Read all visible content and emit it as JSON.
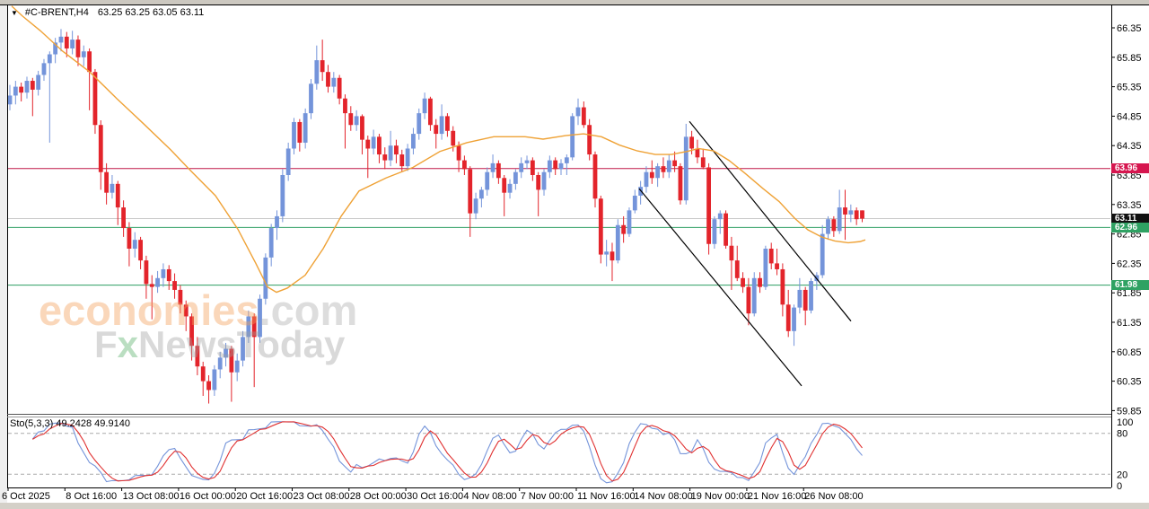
{
  "header": {
    "dropdown_glyph": "▼",
    "symbol": "#C-BRENT,H4",
    "ohlc": "63.25 63.25 63.05 63.11"
  },
  "watermark": {
    "brand": "economies",
    "brand_suffix": ".com",
    "sub_f": "F",
    "sub_x": "x",
    "sub_rest": "NewsToday"
  },
  "indicator": {
    "label": "Sto(5,3,3) 49.2428 49.9140",
    "name": "Stochastic",
    "k_period": 5,
    "d_period": 3,
    "slowing": 3,
    "current_k": "49.2428",
    "current_d": "49.9140",
    "levels": [
      "100",
      "80",
      "20",
      "0"
    ],
    "k_color": "#7494da",
    "d_color": "#e03030"
  },
  "price_axis": {
    "ticks": [
      "66.35",
      "65.85",
      "65.35",
      "64.85",
      "64.35",
      "63.85",
      "63.35",
      "62.85",
      "62.35",
      "61.85",
      "61.35",
      "60.85",
      "60.35",
      "59.85"
    ]
  },
  "colors": {
    "up_candle": "#7494da",
    "down_candle": "#e3242b",
    "ma_line": "#efa236",
    "resistance_line": "#c01849",
    "resistance_badge": "#d6164f",
    "support_line": "#2e9e62",
    "support_badge": "#2fa263",
    "current_price_line": "#c8c8c8",
    "current_price_badge": "#111111",
    "trendline": "#000000",
    "frame": "#000000",
    "level_dash": "#aaaaaa"
  },
  "chart_data": {
    "type": "candlestick",
    "symbol": "#C-BRENT",
    "timeframe": "H4",
    "title": "#C-BRENT,H4 63.25 63.25 63.05 63.11",
    "ylim": [
      59.85,
      66.35
    ],
    "price_ticks": [
      66.35,
      65.85,
      65.35,
      64.85,
      64.35,
      63.85,
      63.35,
      62.85,
      62.35,
      61.85,
      61.35,
      60.85,
      60.35,
      59.85
    ],
    "x_labels": [
      "6 Oct 2025",
      "8 Oct 16:00",
      "13 Oct 08:00",
      "16 Oct 00:00",
      "20 Oct 16:00",
      "23 Oct 08:00",
      "28 Oct 00:00",
      "30 Oct 16:00",
      "4 Nov 08:00",
      "7 Nov 00:00",
      "11 Nov 16:00",
      "14 Nov 08:00",
      "19 Nov 00:00",
      "21 Nov 16:00",
      "26 Nov 08:00"
    ],
    "candles_per_x_label": 10,
    "candles": [
      [
        65.05,
        65.38,
        64.95,
        65.2
      ],
      [
        65.2,
        65.45,
        65.05,
        65.35
      ],
      [
        65.35,
        65.42,
        65.1,
        65.25
      ],
      [
        65.25,
        65.52,
        65.15,
        65.45
      ],
      [
        65.45,
        65.5,
        64.85,
        65.3
      ],
      [
        65.3,
        65.62,
        65.2,
        65.55
      ],
      [
        65.55,
        65.82,
        65.45,
        65.75
      ],
      [
        65.75,
        65.95,
        64.4,
        65.9
      ],
      [
        65.9,
        66.18,
        65.75,
        66.1
      ],
      [
        66.1,
        66.33,
        65.95,
        66.2
      ],
      [
        66.2,
        66.28,
        65.85,
        66.0
      ],
      [
        66.0,
        66.3,
        65.9,
        66.15
      ],
      [
        66.15,
        66.22,
        65.7,
        65.85
      ],
      [
        65.85,
        66.05,
        65.7,
        65.95
      ],
      [
        65.95,
        66.0,
        64.95,
        65.6
      ],
      [
        65.6,
        65.65,
        64.55,
        64.7
      ],
      [
        64.7,
        64.78,
        63.6,
        63.9
      ],
      [
        63.9,
        64.05,
        63.35,
        63.55
      ],
      [
        63.55,
        63.85,
        63.45,
        63.7
      ],
      [
        63.7,
        63.75,
        63.0,
        63.3
      ],
      [
        63.3,
        63.42,
        62.8,
        62.95
      ],
      [
        62.95,
        63.05,
        62.3,
        62.6
      ],
      [
        62.6,
        62.88,
        62.45,
        62.75
      ],
      [
        62.75,
        62.8,
        62.25,
        62.4
      ],
      [
        62.4,
        62.48,
        61.75,
        62.0
      ],
      [
        62.0,
        62.15,
        61.4,
        61.95
      ],
      [
        61.95,
        62.22,
        61.85,
        62.1
      ],
      [
        62.1,
        62.35,
        61.95,
        62.25
      ],
      [
        62.25,
        62.32,
        61.9,
        62.05
      ],
      [
        62.05,
        62.18,
        61.75,
        61.9
      ],
      [
        61.9,
        61.98,
        61.5,
        61.65
      ],
      [
        61.65,
        61.72,
        61.2,
        61.45
      ],
      [
        61.45,
        61.5,
        60.7,
        60.95
      ],
      [
        60.95,
        61.1,
        60.45,
        60.6
      ],
      [
        60.6,
        60.68,
        60.1,
        60.35
      ],
      [
        60.35,
        60.45,
        59.97,
        60.2
      ],
      [
        60.2,
        60.62,
        60.1,
        60.55
      ],
      [
        60.55,
        60.85,
        60.4,
        60.75
      ],
      [
        60.75,
        61.0,
        60.6,
        60.9
      ],
      [
        60.9,
        60.95,
        60.0,
        60.5
      ],
      [
        60.5,
        60.82,
        60.35,
        60.7
      ],
      [
        60.7,
        61.2,
        60.6,
        61.1
      ],
      [
        61.1,
        61.55,
        61.0,
        61.45
      ],
      [
        61.45,
        61.5,
        60.25,
        61.1
      ],
      [
        61.1,
        61.82,
        61.0,
        61.75
      ],
      [
        61.75,
        62.52,
        61.65,
        62.45
      ],
      [
        62.45,
        63.02,
        62.3,
        62.95
      ],
      [
        62.95,
        63.25,
        62.75,
        63.15
      ],
      [
        63.15,
        63.95,
        63.05,
        63.85
      ],
      [
        63.85,
        64.4,
        63.75,
        64.3
      ],
      [
        64.3,
        64.82,
        64.2,
        64.75
      ],
      [
        64.75,
        64.8,
        64.25,
        64.4
      ],
      [
        64.4,
        64.98,
        64.3,
        64.9
      ],
      [
        64.9,
        65.48,
        64.8,
        65.4
      ],
      [
        65.4,
        66.05,
        65.3,
        65.8
      ],
      [
        65.8,
        66.15,
        65.45,
        65.6
      ],
      [
        65.6,
        65.72,
        65.25,
        65.35
      ],
      [
        65.35,
        65.6,
        65.25,
        65.5
      ],
      [
        65.5,
        65.55,
        65.05,
        65.15
      ],
      [
        65.15,
        65.22,
        64.3,
        64.9
      ],
      [
        64.9,
        65.02,
        64.6,
        64.7
      ],
      [
        64.7,
        64.95,
        64.6,
        64.85
      ],
      [
        64.85,
        64.88,
        64.2,
        64.45
      ],
      [
        64.45,
        64.52,
        63.8,
        64.3
      ],
      [
        64.3,
        64.62,
        64.2,
        64.5
      ],
      [
        64.5,
        64.55,
        64.05,
        64.2
      ],
      [
        64.2,
        64.32,
        63.95,
        64.1
      ],
      [
        64.1,
        64.6,
        64.0,
        64.35
      ],
      [
        64.35,
        64.45,
        64.05,
        64.2
      ],
      [
        64.2,
        64.28,
        63.9,
        64.0
      ],
      [
        64.0,
        64.38,
        63.92,
        64.3
      ],
      [
        64.3,
        64.65,
        64.2,
        64.55
      ],
      [
        64.55,
        64.98,
        64.45,
        64.9
      ],
      [
        64.9,
        65.25,
        64.8,
        65.15
      ],
      [
        65.15,
        65.18,
        64.6,
        64.7
      ],
      [
        64.7,
        64.8,
        64.3,
        64.55
      ],
      [
        64.55,
        65.05,
        64.45,
        64.85
      ],
      [
        64.85,
        64.9,
        64.5,
        64.6
      ],
      [
        64.6,
        64.68,
        64.25,
        64.35
      ],
      [
        64.35,
        64.42,
        63.9,
        64.1
      ],
      [
        64.1,
        64.18,
        63.85,
        63.95
      ],
      [
        63.95,
        64.0,
        62.8,
        63.2
      ],
      [
        63.2,
        63.55,
        63.1,
        63.45
      ],
      [
        63.45,
        63.65,
        63.3,
        63.6
      ],
      [
        63.6,
        63.98,
        63.5,
        63.9
      ],
      [
        63.9,
        64.2,
        63.8,
        64.05
      ],
      [
        64.05,
        64.1,
        63.7,
        63.8
      ],
      [
        63.8,
        63.85,
        63.15,
        63.55
      ],
      [
        63.55,
        63.78,
        63.45,
        63.7
      ],
      [
        63.7,
        63.95,
        63.6,
        63.9
      ],
      [
        63.9,
        64.15,
        63.8,
        64.05
      ],
      [
        64.05,
        64.18,
        63.95,
        64.1
      ],
      [
        64.1,
        64.15,
        63.75,
        63.85
      ],
      [
        63.85,
        63.9,
        63.15,
        63.6
      ],
      [
        63.6,
        63.95,
        63.5,
        63.9
      ],
      [
        63.9,
        64.18,
        63.8,
        64.1
      ],
      [
        64.1,
        64.15,
        63.85,
        63.95
      ],
      [
        63.95,
        64.12,
        63.85,
        64.05
      ],
      [
        64.05,
        64.2,
        63.85,
        64.15
      ],
      [
        64.15,
        64.9,
        64.1,
        64.85
      ],
      [
        64.85,
        65.15,
        64.7,
        65.0
      ],
      [
        65.0,
        65.1,
        64.65,
        64.7
      ],
      [
        64.7,
        64.8,
        64.1,
        64.2
      ],
      [
        64.2,
        64.25,
        63.3,
        63.45
      ],
      [
        63.45,
        63.5,
        62.35,
        62.5
      ],
      [
        62.5,
        62.75,
        62.3,
        62.55
      ],
      [
        62.55,
        62.7,
        62.05,
        62.4
      ],
      [
        62.4,
        63.1,
        62.35,
        63.0
      ],
      [
        63.0,
        63.15,
        62.7,
        62.85
      ],
      [
        62.85,
        63.3,
        62.8,
        63.25
      ],
      [
        63.25,
        63.6,
        63.2,
        63.5
      ],
      [
        63.5,
        63.75,
        63.35,
        63.65
      ],
      [
        63.65,
        64.0,
        63.55,
        63.9
      ],
      [
        63.9,
        64.1,
        63.7,
        63.8
      ],
      [
        63.8,
        64.05,
        63.65,
        64.0
      ],
      [
        64.0,
        64.15,
        63.8,
        63.9
      ],
      [
        63.9,
        64.2,
        63.8,
        64.1
      ],
      [
        64.1,
        64.25,
        63.9,
        64.0
      ],
      [
        64.0,
        64.05,
        63.35,
        63.42
      ],
      [
        63.42,
        64.72,
        63.35,
        64.5
      ],
      [
        64.5,
        64.6,
        64.2,
        64.3
      ],
      [
        64.3,
        64.45,
        64.05,
        64.15
      ],
      [
        64.15,
        64.3,
        63.95,
        63.98
      ],
      [
        63.98,
        64.05,
        62.5,
        62.68
      ],
      [
        62.68,
        63.15,
        62.6,
        63.1
      ],
      [
        63.1,
        63.25,
        62.85,
        63.2
      ],
      [
        63.2,
        63.25,
        62.6,
        62.65
      ],
      [
        62.65,
        62.8,
        61.9,
        62.4
      ],
      [
        62.4,
        62.65,
        62.05,
        62.1
      ],
      [
        62.1,
        62.2,
        61.85,
        61.95
      ],
      [
        61.95,
        62.1,
        61.3,
        61.5
      ],
      [
        61.5,
        62.2,
        61.45,
        62.1
      ],
      [
        62.1,
        62.2,
        61.85,
        61.95
      ],
      [
        61.95,
        62.65,
        61.9,
        62.6
      ],
      [
        62.6,
        62.7,
        62.25,
        62.35
      ],
      [
        62.35,
        62.6,
        62.15,
        62.25
      ],
      [
        62.25,
        62.35,
        61.45,
        61.65
      ],
      [
        61.65,
        61.9,
        61.1,
        61.2
      ],
      [
        61.2,
        61.65,
        60.95,
        61.6
      ],
      [
        61.6,
        62.1,
        61.5,
        61.9
      ],
      [
        61.9,
        61.95,
        61.3,
        61.55
      ],
      [
        61.55,
        62.1,
        61.5,
        62.05
      ],
      [
        62.05,
        62.2,
        61.9,
        62.15
      ],
      [
        62.15,
        63.0,
        62.1,
        62.85
      ],
      [
        62.85,
        63.15,
        62.75,
        63.1
      ],
      [
        63.1,
        63.15,
        62.8,
        62.9
      ],
      [
        62.9,
        63.6,
        62.85,
        63.3
      ],
      [
        63.3,
        63.6,
        62.75,
        63.18
      ],
      [
        63.18,
        63.35,
        63.05,
        63.25
      ],
      [
        63.25,
        63.3,
        63.0,
        63.1
      ],
      [
        63.25,
        63.25,
        63.05,
        63.11
      ]
    ],
    "moving_average": [
      [
        13,
        66.72
      ],
      [
        25,
        66.55
      ],
      [
        45,
        66.3
      ],
      [
        70,
        65.95
      ],
      [
        100,
        65.6
      ],
      [
        130,
        65.15
      ],
      [
        160,
        64.72
      ],
      [
        190,
        64.28
      ],
      [
        212,
        63.93
      ],
      [
        240,
        63.5
      ],
      [
        265,
        62.93
      ],
      [
        285,
        62.35
      ],
      [
        298,
        61.95
      ],
      [
        308,
        61.86
      ],
      [
        320,
        61.93
      ],
      [
        340,
        62.15
      ],
      [
        360,
        62.6
      ],
      [
        380,
        63.15
      ],
      [
        400,
        63.58
      ],
      [
        430,
        63.8
      ],
      [
        460,
        63.98
      ],
      [
        490,
        64.25
      ],
      [
        520,
        64.4
      ],
      [
        550,
        64.5
      ],
      [
        585,
        64.5
      ],
      [
        605,
        64.46
      ],
      [
        630,
        64.52
      ],
      [
        650,
        64.55
      ],
      [
        670,
        64.5
      ],
      [
        690,
        64.36
      ],
      [
        710,
        64.26
      ],
      [
        730,
        64.2
      ],
      [
        748,
        64.2
      ],
      [
        765,
        64.25
      ],
      [
        778,
        64.3
      ],
      [
        795,
        64.26
      ],
      [
        812,
        64.1
      ],
      [
        830,
        63.88
      ],
      [
        850,
        63.62
      ],
      [
        868,
        63.4
      ],
      [
        885,
        63.12
      ],
      [
        900,
        62.92
      ],
      [
        915,
        62.8
      ],
      [
        930,
        62.73
      ],
      [
        945,
        62.7
      ],
      [
        958,
        62.72
      ],
      [
        964,
        62.75
      ]
    ],
    "hlines": [
      {
        "price": 63.96,
        "label": "63.96",
        "line_color": "#c01849",
        "badge_color": "#d6164f",
        "role": "resistance"
      },
      {
        "price": 63.11,
        "label": "63.11",
        "line_color": "#c8c8c8",
        "badge_color": "#111111",
        "role": "current-price"
      },
      {
        "price": 62.96,
        "label": "62.96",
        "line_color": "#2e9e62",
        "badge_color": "#2fa263",
        "role": "support"
      },
      {
        "price": 61.98,
        "label": "61.98",
        "line_color": "#2e9e62",
        "badge_color": "#2fa263",
        "role": "support"
      }
    ],
    "trendlines": [
      {
        "x1": 768,
        "p1": 64.76,
        "x2": 948,
        "p2": 61.37,
        "role": "channel-upper"
      },
      {
        "x1": 712,
        "p1": 63.62,
        "x2": 893,
        "p2": 60.27,
        "role": "channel-lower"
      }
    ],
    "stochastic_levels": [
      80,
      20
    ],
    "stochastic_range": [
      0,
      100
    ]
  }
}
